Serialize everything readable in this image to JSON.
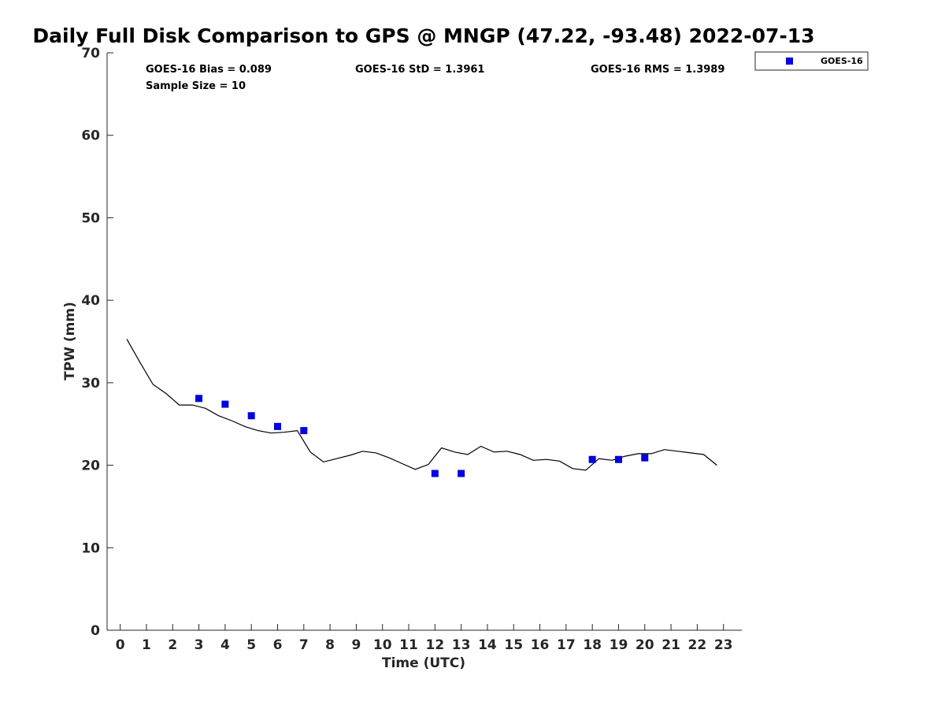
{
  "chart_data": {
    "type": "line+scatter",
    "title": "Daily Full Disk Comparison to GPS @ MNGP (47.22, -93.48) 2022-07-13",
    "xlabel": "Time (UTC)",
    "ylabel": "TPW (mm)",
    "xlim": [
      -0.5,
      23.7
    ],
    "ylim": [
      0,
      70
    ],
    "xticks": [
      0,
      1,
      2,
      3,
      4,
      5,
      6,
      7,
      8,
      9,
      10,
      11,
      12,
      13,
      14,
      15,
      16,
      17,
      18,
      19,
      20,
      21,
      22,
      23
    ],
    "yticks": [
      0,
      10,
      20,
      30,
      40,
      50,
      60,
      70
    ],
    "grid": false,
    "legend": {
      "placement": "top-right-outside",
      "entries": [
        "GOES-16"
      ]
    },
    "stats": {
      "bias": "GOES-16 Bias = 0.089",
      "std": "GOES-16 StD = 1.3961",
      "rms": "GOES-16 RMS = 1.3989",
      "sample_size": "Sample Size = 10"
    },
    "series": [
      {
        "type": "line",
        "color": "#000000",
        "x": [
          0.25,
          0.75,
          1.25,
          1.75,
          2.25,
          2.75,
          3.25,
          3.75,
          4.25,
          4.75,
          5.25,
          5.75,
          6.25,
          6.75,
          7.25,
          7.75,
          8.25,
          8.75,
          9.25,
          9.75,
          10.25,
          10.75,
          11.25,
          11.75,
          12.25,
          12.75,
          13.25,
          13.75,
          14.25,
          14.75,
          15.25,
          15.75,
          16.25,
          16.75,
          17.25,
          17.75,
          18.25,
          18.75,
          19.25,
          19.75,
          20.25,
          20.75,
          21.25,
          21.75,
          22.25,
          22.75
        ],
        "y": [
          35.3,
          32.5,
          29.8,
          28.7,
          27.3,
          27.3,
          26.9,
          26.0,
          25.4,
          24.7,
          24.2,
          23.9,
          24.0,
          24.2,
          21.6,
          20.4,
          20.8,
          21.2,
          21.7,
          21.5,
          20.9,
          20.2,
          19.5,
          20.1,
          22.1,
          21.6,
          21.3,
          22.3,
          21.6,
          21.7,
          21.3,
          20.6,
          20.7,
          20.5,
          19.6,
          19.4,
          20.8,
          20.6,
          21.1,
          21.4,
          21.4,
          21.9,
          21.7,
          21.5,
          21.3,
          20.0
        ]
      },
      {
        "name": "GOES-16",
        "type": "scatter",
        "marker": "square",
        "color": "#0000e0",
        "x": [
          3,
          4,
          5,
          6,
          7,
          12,
          13,
          18,
          19,
          20
        ],
        "y": [
          28.1,
          27.4,
          26.0,
          24.7,
          24.2,
          19.0,
          19.0,
          20.7,
          20.7,
          20.9
        ]
      }
    ]
  }
}
